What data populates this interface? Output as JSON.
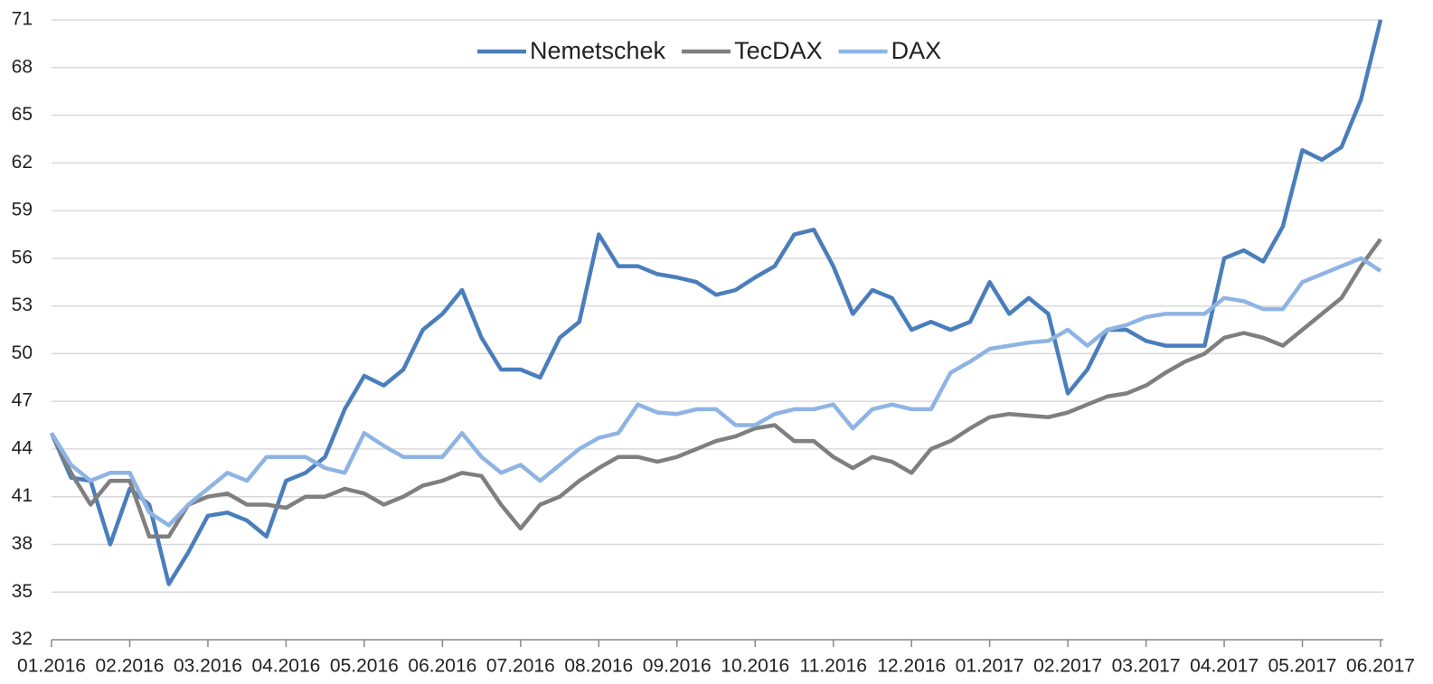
{
  "chart_data": {
    "type": "line",
    "categories": [
      "01.2016",
      null,
      null,
      null,
      "02.2016",
      null,
      null,
      null,
      "03.2016",
      null,
      null,
      null,
      "04.2016",
      null,
      null,
      null,
      "05.2016",
      null,
      null,
      null,
      "06.2016",
      null,
      null,
      null,
      "07.2016",
      null,
      null,
      null,
      "08.2016",
      null,
      null,
      null,
      "09.2016",
      null,
      null,
      null,
      "10.2016",
      null,
      null,
      null,
      "11.2016",
      null,
      null,
      null,
      "12.2016",
      null,
      null,
      null,
      "01.2017",
      null,
      null,
      null,
      "02.2017",
      null,
      null,
      null,
      "03.2017",
      null,
      null,
      null,
      "04.2017",
      null,
      null,
      null,
      "05.2017",
      null,
      null,
      null,
      "06.2017"
    ],
    "series": [
      {
        "name": "Nemetschek",
        "color": "#4a7ebb",
        "values": [
          45,
          42.2,
          42,
          38,
          41.5,
          40.5,
          35.5,
          37.5,
          39.8,
          40,
          39.5,
          38.5,
          42,
          42.5,
          43.5,
          46.5,
          48.6,
          48,
          49,
          51.5,
          52.5,
          54,
          51,
          49,
          49,
          48.5,
          51,
          52,
          57.5,
          55.5,
          55.5,
          55,
          54.8,
          54.5,
          53.7,
          54,
          54.8,
          55.5,
          57.5,
          57.8,
          55.5,
          52.5,
          54,
          53.5,
          51.5,
          52,
          51.5,
          52,
          54.5,
          52.5,
          53.5,
          52.5,
          47.5,
          49,
          51.5,
          51.5,
          50.8,
          50.5,
          50.5,
          50.5,
          56,
          56.5,
          55.8,
          58,
          62.8,
          62.2,
          63,
          66,
          71
        ]
      },
      {
        "name": "TecDAX",
        "color": "#7f7f7f",
        "values": [
          45,
          42.5,
          40.5,
          42,
          42,
          38.5,
          38.5,
          40.5,
          41,
          41.2,
          40.5,
          40.5,
          40.3,
          41,
          41,
          41.5,
          41.2,
          40.5,
          41,
          41.7,
          42,
          42.5,
          42.3,
          40.5,
          39,
          40.5,
          41,
          42,
          42.8,
          43.5,
          43.5,
          43.2,
          43.5,
          44,
          44.5,
          44.8,
          45.3,
          45.5,
          44.5,
          44.5,
          43.5,
          42.8,
          43.5,
          43.2,
          42.5,
          44,
          44.5,
          45.3,
          46,
          46.2,
          46.1,
          46,
          46.3,
          46.8,
          47.3,
          47.5,
          48,
          48.8,
          49.5,
          50,
          51,
          51.3,
          51,
          50.5,
          51.5,
          52.5,
          53.5,
          55.5,
          57.2
        ]
      },
      {
        "name": "DAX",
        "color": "#8fb4e3",
        "values": [
          45,
          43,
          42,
          42.5,
          42.5,
          40,
          39.2,
          40.5,
          41.5,
          42.5,
          42,
          43.5,
          43.5,
          43.5,
          42.8,
          42.5,
          45,
          44.2,
          43.5,
          43.5,
          43.5,
          45,
          43.5,
          42.5,
          43,
          42,
          43,
          44,
          44.7,
          45,
          46.8,
          46.3,
          46.2,
          46.5,
          46.5,
          45.5,
          45.5,
          46.2,
          46.5,
          46.5,
          46.8,
          45.3,
          46.5,
          46.8,
          46.5,
          46.5,
          48.8,
          49.5,
          50.3,
          50.5,
          50.7,
          50.8,
          51.5,
          50.5,
          51.5,
          51.8,
          52.3,
          52.5,
          52.5,
          52.5,
          53.5,
          53.3,
          52.8,
          52.8,
          54.5,
          55,
          55.5,
          56,
          55.2
        ]
      }
    ],
    "ylim": [
      32,
      71
    ],
    "yticks": [
      32,
      35,
      38,
      41,
      44,
      47,
      50,
      53,
      56,
      59,
      62,
      65,
      68,
      71
    ],
    "grid": true,
    "legend": "top"
  }
}
